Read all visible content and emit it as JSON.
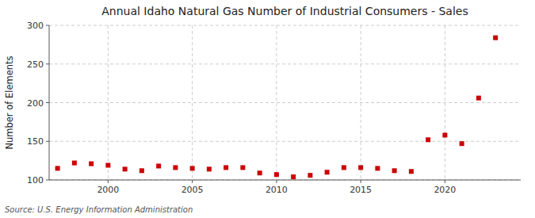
{
  "chart_data": {
    "type": "scatter",
    "title": "Annual Idaho Natural Gas Number of Industrial Consumers - Sales",
    "ylabel": "Number of Elements",
    "source": "Source: U.S. Energy Information Administration",
    "x": [
      1997,
      1998,
      1999,
      2000,
      2001,
      2002,
      2003,
      2004,
      2005,
      2006,
      2007,
      2008,
      2009,
      2010,
      2011,
      2012,
      2013,
      2014,
      2015,
      2016,
      2017,
      2018,
      2019,
      2020,
      2021,
      2022,
      2023
    ],
    "values": [
      115,
      122,
      121,
      119,
      114,
      112,
      118,
      116,
      115,
      114,
      116,
      116,
      109,
      107,
      104,
      106,
      110,
      116,
      116,
      115,
      112,
      111,
      152,
      158,
      147,
      206,
      284
    ],
    "color": "#cc0000",
    "marker": "square",
    "xlim": [
      1996.5,
      2024.5
    ],
    "xticks": [
      2000,
      2005,
      2010,
      2015,
      2020
    ],
    "ylim": [
      100,
      300
    ],
    "yticks": [
      100,
      150,
      200,
      250,
      300
    ],
    "grid": true
  }
}
